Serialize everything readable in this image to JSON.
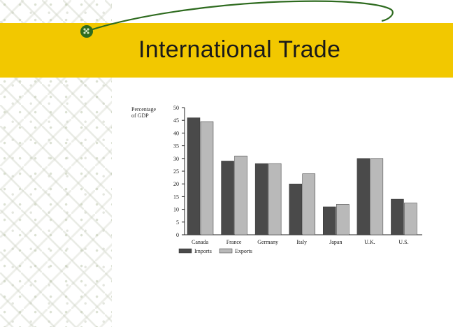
{
  "slide": {
    "title": "International Trade",
    "accent_color": "#f2c800",
    "decor_line_color": "#2e6b1f"
  },
  "chart_data": {
    "type": "bar",
    "ylabel_line1": "Percentage",
    "ylabel_line2": "of GDP",
    "categories": [
      "Canada",
      "France",
      "Germany",
      "Italy",
      "Japan",
      "U.K.",
      "U.S."
    ],
    "series": [
      {
        "name": "Imports",
        "values": [
          46,
          29,
          28,
          20,
          11,
          30,
          14
        ],
        "color": "#4a4a4a"
      },
      {
        "name": "Exports",
        "values": [
          44.5,
          31,
          28,
          24,
          12,
          30,
          12.5
        ],
        "color": "#b9b9b9"
      }
    ],
    "ylim": [
      0,
      50
    ],
    "yticks": [
      0,
      5,
      10,
      15,
      20,
      25,
      30,
      35,
      40,
      45,
      50
    ],
    "grid": false,
    "legend": "bottom-left"
  }
}
